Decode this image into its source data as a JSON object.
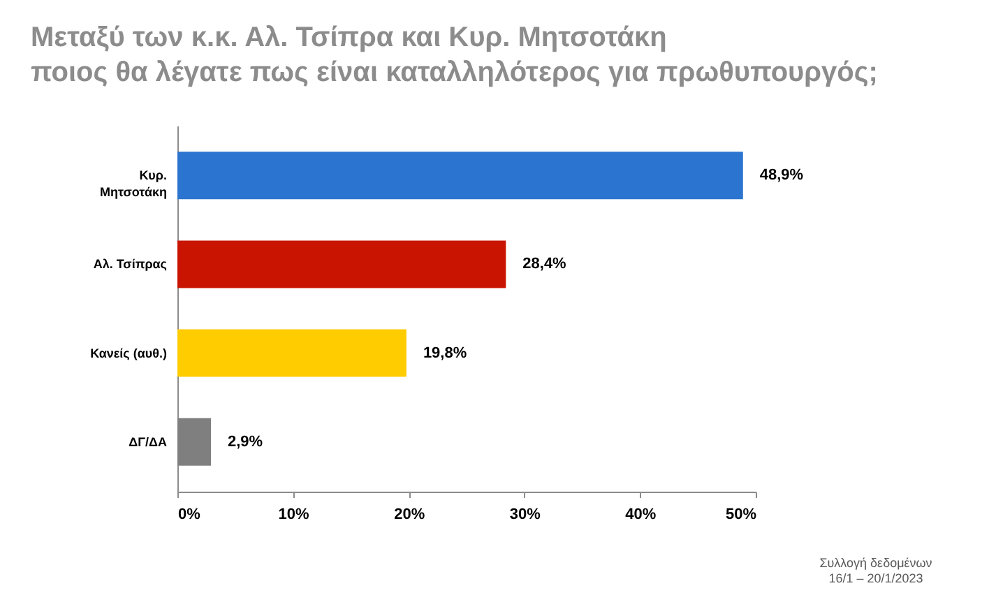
{
  "chart_data": {
    "type": "bar",
    "orientation": "horizontal",
    "title": "Μεταξύ των κ.κ. Αλ. Τσίπρα και Κυρ. Μητσοτάκη\nποιος θα λέγατε πως είναι καταλληλότερος για πρωθυπουργός;",
    "categories": [
      "Κυρ. Μητσοτάκη",
      "Αλ. Τσίπρας",
      "Κανείς (αυθ.)",
      "ΔΓ/ΔΑ"
    ],
    "values": [
      48.9,
      28.4,
      19.8,
      2.9
    ],
    "colors": [
      "#2b74d0",
      "#c81400",
      "#ffcc00",
      "#7f7f7f"
    ],
    "value_labels": [
      "48,9%",
      "28,4%",
      "19,8%",
      "2,9%"
    ],
    "xlim": [
      0,
      50
    ],
    "xticks": [
      {
        "value": 0,
        "label": "0%"
      },
      {
        "value": 10,
        "label": "10%"
      },
      {
        "value": 20,
        "label": "20%"
      },
      {
        "value": 30,
        "label": "30%"
      },
      {
        "value": 40,
        "label": "40%"
      },
      {
        "value": 50,
        "label": "50%"
      }
    ],
    "annotations": [
      "Συλλογή δεδομένων\n16/1 – 20/1/2023"
    ]
  }
}
